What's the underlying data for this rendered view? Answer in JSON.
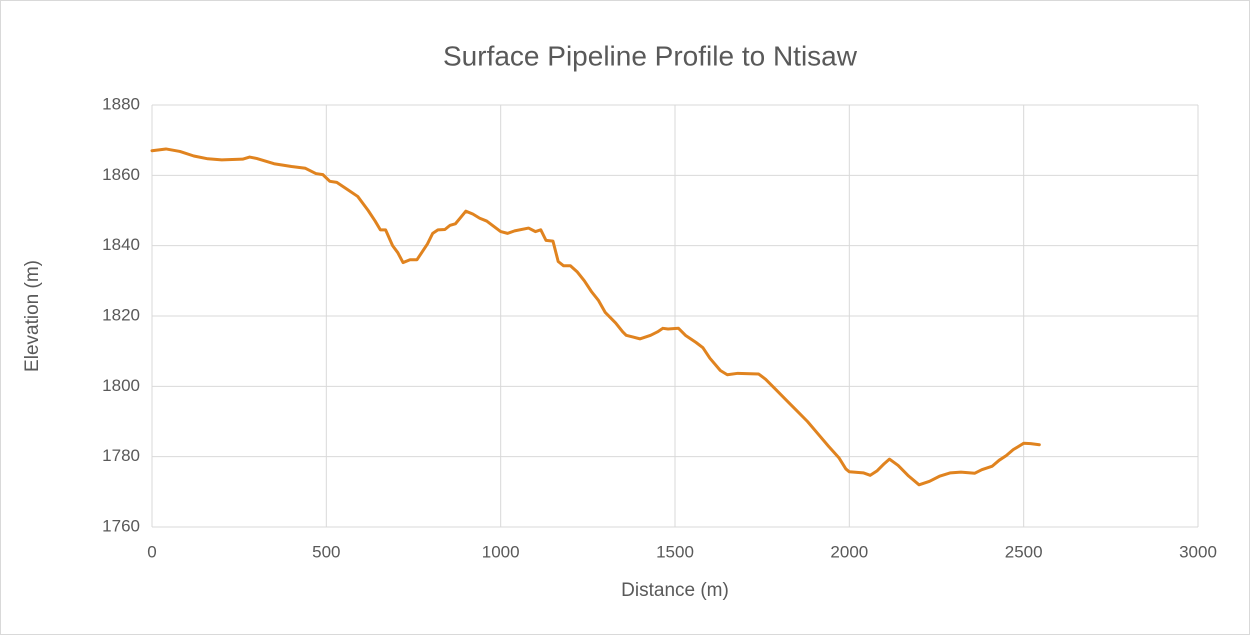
{
  "chart_data": {
    "type": "line",
    "title": "Surface Pipeline Profile to Ntisaw",
    "x_label": "Distance (m)",
    "y_label": "Elevation (m)",
    "x": [
      0,
      40,
      80,
      120,
      160,
      200,
      260,
      280,
      300,
      350,
      400,
      440,
      470,
      490,
      510,
      530,
      560,
      590,
      620,
      640,
      655,
      670,
      690,
      705,
      720,
      740,
      760,
      790,
      805,
      820,
      840,
      855,
      870,
      885,
      900,
      920,
      940,
      960,
      980,
      1000,
      1020,
      1040,
      1080,
      1100,
      1115,
      1130,
      1150,
      1165,
      1180,
      1200,
      1220,
      1240,
      1260,
      1280,
      1300,
      1330,
      1350,
      1360,
      1380,
      1400,
      1430,
      1450,
      1465,
      1480,
      1510,
      1530,
      1560,
      1580,
      1600,
      1630,
      1650,
      1680,
      1740,
      1760,
      1790,
      1820,
      1850,
      1880,
      1910,
      1940,
      1970,
      1990,
      2000,
      2040,
      2060,
      2080,
      2100,
      2115,
      2140,
      2170,
      2200,
      2230,
      2260,
      2290,
      2320,
      2360,
      2380,
      2410,
      2430,
      2450,
      2470,
      2500,
      2520,
      2545
    ],
    "series": [
      {
        "color": "#e0831f",
        "values": [
          1867,
          1867.5,
          1866.8,
          1865.5,
          1864.7,
          1864.4,
          1864.6,
          1865.2,
          1864.8,
          1863.3,
          1862.5,
          1862,
          1860.5,
          1860.2,
          1858.3,
          1858,
          1856,
          1854,
          1850,
          1847,
          1844.5,
          1844.5,
          1840,
          1838,
          1835.2,
          1836,
          1836,
          1840.5,
          1843.5,
          1844.5,
          1844.6,
          1845.8,
          1846.2,
          1848,
          1849.8,
          1849,
          1847.8,
          1847,
          1845.5,
          1844,
          1843.5,
          1844.2,
          1845,
          1844,
          1844.5,
          1841.5,
          1841.3,
          1835.5,
          1834.3,
          1834.3,
          1832.5,
          1830,
          1827,
          1824.5,
          1821,
          1818,
          1815.5,
          1814.5,
          1814,
          1813.5,
          1814.5,
          1815.5,
          1816.5,
          1816.3,
          1816.5,
          1814.5,
          1812.5,
          1811,
          1808,
          1804.5,
          1803.3,
          1803.7,
          1803.5,
          1802,
          1799,
          1796,
          1793,
          1790,
          1786.5,
          1783,
          1779.7,
          1776.5,
          1775.7,
          1775.4,
          1774.7,
          1776,
          1778,
          1779.3,
          1777.5,
          1774.5,
          1772,
          1773,
          1774.5,
          1775.4,
          1775.6,
          1775.3,
          1776.3,
          1777.3,
          1779,
          1780.3,
          1782,
          1783.8,
          1783.7,
          1783.4
        ]
      }
    ],
    "xlim": [
      0,
      3000
    ],
    "xticks": [
      0,
      500,
      1000,
      1500,
      2000,
      2500,
      3000
    ],
    "ylim": [
      1760,
      1880
    ],
    "yticks": [
      1760,
      1780,
      1800,
      1820,
      1840,
      1860,
      1880
    ],
    "grid": true
  }
}
